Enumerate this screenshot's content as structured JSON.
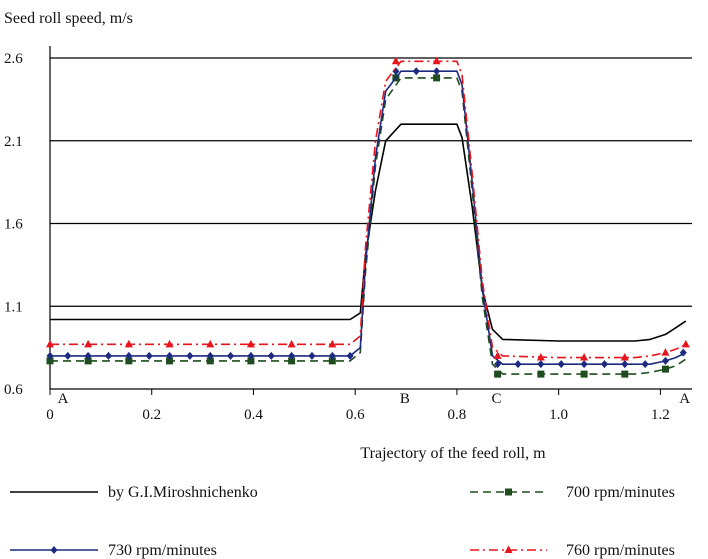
{
  "chart_data": {
    "type": "line",
    "title": "",
    "ylabel": "Seed roll speed, m/s",
    "xlabel": "Trajectory of the feed roll, m",
    "xlim": [
      0,
      1.25
    ],
    "ylim": [
      0.6,
      2.6
    ],
    "x_ticks": [
      "0",
      "0.2",
      "0.4",
      "0.6",
      "0.8",
      "1.0",
      "1.2"
    ],
    "x_tick_values": [
      0,
      0.2,
      0.4,
      0.6,
      0.8,
      1.0,
      1.2
    ],
    "y_ticks": [
      "0.6",
      "1.1",
      "1.6",
      "2.1",
      "2.6"
    ],
    "y_tick_values": [
      0.6,
      1.1,
      1.6,
      2.1,
      2.6
    ],
    "grid": "horizontal",
    "legend_position": "bottom",
    "point_labels": [
      {
        "text": "A",
        "x": 0.0
      },
      {
        "text": "B",
        "x": 0.68
      },
      {
        "text": "C",
        "x": 0.86
      },
      {
        "text": "A",
        "x": 1.23
      }
    ],
    "series": [
      {
        "name": "by G.I.Miroshnichenko",
        "color": "#000000",
        "dash": "solid",
        "marker": "none",
        "x": [
          0,
          0.1,
          0.2,
          0.3,
          0.4,
          0.5,
          0.59,
          0.61,
          0.62,
          0.64,
          0.66,
          0.69,
          0.8,
          0.81,
          0.83,
          0.85,
          0.87,
          0.89,
          1.0,
          1.1,
          1.15,
          1.18,
          1.21,
          1.23,
          1.25
        ],
        "y": [
          1.02,
          1.02,
          1.02,
          1.02,
          1.02,
          1.02,
          1.02,
          1.06,
          1.4,
          1.8,
          2.1,
          2.2,
          2.2,
          2.12,
          1.7,
          1.2,
          0.96,
          0.9,
          0.89,
          0.89,
          0.89,
          0.9,
          0.93,
          0.97,
          1.01
        ]
      },
      {
        "name": "700 rpm/minutes",
        "color": "#1f4d1f",
        "dash": "dashed",
        "marker": "square",
        "x": [
          0,
          0.1,
          0.2,
          0.3,
          0.4,
          0.5,
          0.59,
          0.61,
          0.62,
          0.64,
          0.66,
          0.69,
          0.8,
          0.81,
          0.83,
          0.85,
          0.87,
          0.89,
          1.0,
          1.1,
          1.15,
          1.18,
          1.21,
          1.23,
          1.25
        ],
        "y": [
          0.77,
          0.77,
          0.77,
          0.77,
          0.77,
          0.77,
          0.77,
          0.82,
          1.3,
          1.95,
          2.35,
          2.48,
          2.48,
          2.4,
          1.8,
          1.15,
          0.75,
          0.69,
          0.69,
          0.69,
          0.69,
          0.7,
          0.72,
          0.74,
          0.78
        ],
        "markers_x": [
          0,
          0.075,
          0.155,
          0.235,
          0.315,
          0.395,
          0.475,
          0.555,
          0.68,
          0.76,
          0.88,
          0.965,
          1.05,
          1.13,
          1.21
        ],
        "markers_y": [
          0.77,
          0.77,
          0.77,
          0.77,
          0.77,
          0.77,
          0.77,
          0.77,
          2.48,
          2.48,
          0.69,
          0.69,
          0.69,
          0.69,
          0.72
        ]
      },
      {
        "name": "730 rpm/minutes",
        "color": "#1c2a80",
        "dash": "solid",
        "marker": "diamond",
        "x": [
          0,
          0.1,
          0.2,
          0.3,
          0.4,
          0.5,
          0.59,
          0.61,
          0.62,
          0.64,
          0.66,
          0.69,
          0.8,
          0.81,
          0.83,
          0.85,
          0.87,
          0.89,
          1.0,
          1.1,
          1.15,
          1.18,
          1.21,
          1.23,
          1.25
        ],
        "y": [
          0.8,
          0.8,
          0.8,
          0.8,
          0.8,
          0.8,
          0.8,
          0.85,
          1.35,
          2.0,
          2.4,
          2.52,
          2.52,
          2.44,
          1.85,
          1.2,
          0.8,
          0.75,
          0.75,
          0.75,
          0.75,
          0.75,
          0.77,
          0.79,
          0.82
        ],
        "markers_x": [
          0,
          0.035,
          0.075,
          0.115,
          0.155,
          0.195,
          0.235,
          0.275,
          0.315,
          0.355,
          0.395,
          0.435,
          0.475,
          0.515,
          0.555,
          0.59,
          0.68,
          0.72,
          0.76,
          0.88,
          0.92,
          0.965,
          1.005,
          1.05,
          1.09,
          1.13,
          1.17,
          1.21,
          1.245
        ],
        "markers_y": [
          0.8,
          0.8,
          0.8,
          0.8,
          0.8,
          0.8,
          0.8,
          0.8,
          0.8,
          0.8,
          0.8,
          0.8,
          0.8,
          0.8,
          0.8,
          0.8,
          2.52,
          2.52,
          2.52,
          0.75,
          0.75,
          0.75,
          0.75,
          0.75,
          0.75,
          0.75,
          0.75,
          0.77,
          0.82
        ]
      },
      {
        "name": "760 rpm/minutes",
        "color": "#e8131b",
        "dash": "dashdot",
        "marker": "triangle",
        "x": [
          0,
          0.1,
          0.2,
          0.3,
          0.4,
          0.5,
          0.59,
          0.61,
          0.62,
          0.64,
          0.66,
          0.69,
          0.8,
          0.81,
          0.83,
          0.85,
          0.87,
          0.89,
          1.0,
          1.1,
          1.15,
          1.18,
          1.21,
          1.23,
          1.25
        ],
        "y": [
          0.87,
          0.87,
          0.87,
          0.87,
          0.87,
          0.87,
          0.87,
          0.92,
          1.45,
          2.1,
          2.46,
          2.58,
          2.58,
          2.5,
          1.9,
          1.25,
          0.85,
          0.8,
          0.79,
          0.79,
          0.79,
          0.8,
          0.82,
          0.84,
          0.87
        ],
        "markers_x": [
          0,
          0.075,
          0.155,
          0.235,
          0.315,
          0.395,
          0.475,
          0.555,
          0.68,
          0.76,
          0.88,
          0.965,
          1.05,
          1.13,
          1.21,
          1.25
        ],
        "markers_y": [
          0.87,
          0.87,
          0.87,
          0.87,
          0.87,
          0.87,
          0.87,
          0.87,
          2.58,
          2.58,
          0.8,
          0.79,
          0.79,
          0.79,
          0.82,
          0.87
        ]
      }
    ]
  }
}
